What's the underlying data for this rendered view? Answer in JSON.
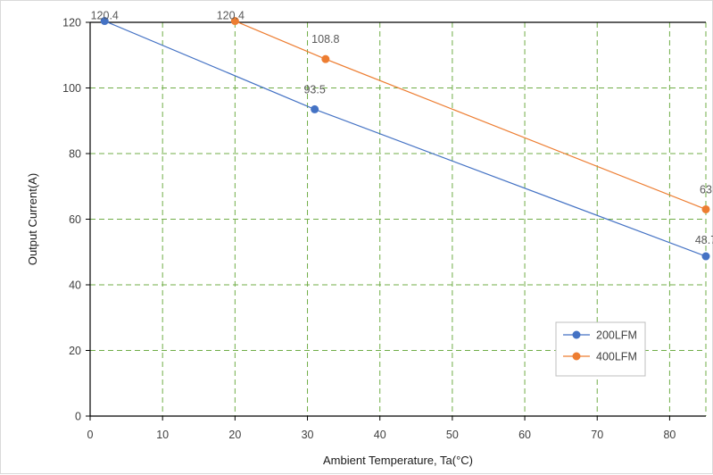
{
  "chart_data": {
    "type": "line",
    "title": "",
    "xlabel": "Ambient Temperature, Ta(°C)",
    "ylabel": "Output Current(A)",
    "xlim": [
      0,
      85
    ],
    "ylim": [
      0,
      120
    ],
    "xticks": [
      0,
      10,
      20,
      30,
      40,
      50,
      60,
      70,
      80
    ],
    "yticks": [
      0,
      20,
      40,
      60,
      80,
      100,
      120
    ],
    "grid": true,
    "legend": "bottom-right",
    "series": [
      {
        "name": "200LFM",
        "color": "#4472c4",
        "x": [
          2,
          31,
          85
        ],
        "y": [
          120.4,
          93.5,
          48.7
        ],
        "labels": [
          "120.4",
          "93.5",
          "48.7"
        ]
      },
      {
        "name": "400LFM",
        "color": "#ed7d31",
        "x": [
          20,
          32.5,
          85
        ],
        "y": [
          120.4,
          108.8,
          63
        ],
        "labels": [
          "120.4",
          "108.8",
          "63"
        ]
      }
    ],
    "colors": {
      "grid": "#70ad47",
      "axis": "#000000"
    }
  }
}
